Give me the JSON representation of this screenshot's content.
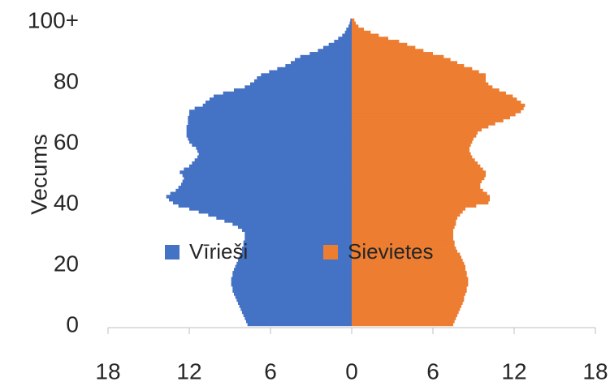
{
  "chart_data": {
    "type": "bar",
    "orientation": "horizontal",
    "ylabel": "Vecums",
    "y": [
      0,
      1,
      2,
      3,
      4,
      5,
      6,
      7,
      8,
      9,
      10,
      11,
      12,
      13,
      14,
      15,
      16,
      17,
      18,
      19,
      20,
      21,
      22,
      23,
      24,
      25,
      26,
      27,
      28,
      29,
      30,
      31,
      32,
      33,
      34,
      35,
      36,
      37,
      38,
      39,
      40,
      41,
      42,
      43,
      44,
      45,
      46,
      47,
      48,
      49,
      50,
      51,
      52,
      53,
      54,
      55,
      56,
      57,
      58,
      59,
      60,
      61,
      62,
      63,
      64,
      65,
      66,
      67,
      68,
      69,
      70,
      71,
      72,
      73,
      74,
      75,
      76,
      77,
      78,
      79,
      80,
      81,
      82,
      83,
      84,
      85,
      86,
      87,
      88,
      89,
      90,
      91,
      92,
      93,
      94,
      95,
      96,
      97,
      98,
      99,
      100
    ],
    "series": [
      {
        "name": "Vīrieši",
        "color": "#4472c4",
        "values": [
          -7.7,
          -7.8,
          -7.9,
          -8.0,
          -8.1,
          -8.2,
          -8.3,
          -8.4,
          -8.5,
          -8.6,
          -8.7,
          -8.8,
          -8.8,
          -8.9,
          -8.9,
          -8.9,
          -8.8,
          -8.8,
          -8.7,
          -8.6,
          -8.5,
          -8.4,
          -8.3,
          -8.2,
          -8.1,
          -8.1,
          -8.0,
          -8.0,
          -7.9,
          -7.9,
          -7.9,
          -8.1,
          -8.4,
          -8.8,
          -9.4,
          -10.0,
          -10.6,
          -11.3,
          -12.0,
          -12.8,
          -13.2,
          -13.5,
          -13.7,
          -13.4,
          -13.0,
          -12.8,
          -12.6,
          -12.5,
          -12.4,
          -12.5,
          -12.7,
          -12.4,
          -12.0,
          -11.8,
          -11.6,
          -11.4,
          -11.3,
          -11.4,
          -11.5,
          -11.8,
          -12.0,
          -12.1,
          -12.2,
          -12.2,
          -12.2,
          -12.2,
          -12.1,
          -12.1,
          -12.1,
          -12.0,
          -12.0,
          -11.6,
          -11.0,
          -10.8,
          -10.5,
          -10.2,
          -9.5,
          -8.7,
          -7.9,
          -7.5,
          -7.2,
          -7.0,
          -6.7,
          -6.1,
          -5.5,
          -4.9,
          -4.5,
          -4.2,
          -3.8,
          -3.1,
          -2.5,
          -2.1,
          -1.7,
          -1.3,
          -1.0,
          -0.7,
          -0.5,
          -0.4,
          -0.24,
          -0.15,
          -0.1
        ]
      },
      {
        "name": "Sievietes",
        "color": "#ed7d31",
        "values": [
          7.5,
          7.6,
          7.7,
          7.8,
          7.9,
          8.0,
          8.1,
          8.2,
          8.3,
          8.3,
          8.4,
          8.5,
          8.5,
          8.6,
          8.6,
          8.6,
          8.5,
          8.5,
          8.4,
          8.4,
          8.3,
          8.2,
          8.1,
          8.0,
          7.8,
          7.7,
          7.6,
          7.6,
          7.5,
          7.5,
          7.5,
          7.5,
          7.6,
          7.7,
          7.7,
          7.8,
          8.0,
          8.2,
          8.4,
          9.2,
          10.1,
          10.2,
          10.2,
          10.0,
          9.7,
          9.5,
          9.5,
          9.6,
          9.8,
          9.9,
          9.9,
          9.7,
          9.5,
          9.3,
          9.1,
          8.9,
          8.8,
          8.7,
          8.7,
          8.8,
          8.9,
          9.0,
          9.2,
          9.3,
          9.6,
          10.1,
          10.6,
          11.2,
          11.7,
          12.1,
          12.5,
          12.7,
          12.8,
          12.5,
          12.2,
          11.9,
          11.4,
          10.9,
          10.4,
          10.1,
          9.9,
          9.9,
          9.9,
          9.4,
          8.9,
          8.3,
          7.8,
          7.3,
          6.8,
          6.0,
          5.3,
          4.7,
          4.1,
          3.5,
          2.7,
          2.0,
          1.4,
          0.9,
          0.5,
          0.3,
          0.2
        ]
      }
    ],
    "xlim": [
      -18,
      18
    ],
    "xticks": [
      {
        "value": -18,
        "label": "18"
      },
      {
        "value": -12,
        "label": "12"
      },
      {
        "value": -6,
        "label": "6"
      },
      0,
      6,
      12,
      18
    ],
    "ylim": [
      -0.5,
      100.5
    ],
    "yticks": [
      0,
      20,
      40,
      60,
      80,
      {
        "value": 100,
        "label": "100+"
      }
    ],
    "legend": "center"
  }
}
